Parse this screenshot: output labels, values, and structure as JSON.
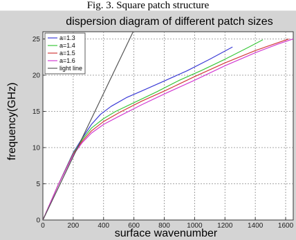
{
  "figure": {
    "caption": "Fig. 3. Square patch structure"
  },
  "chart_data": {
    "type": "line",
    "title": "dispersion diagram of different patch sizes",
    "xlabel": "surface wavenumber",
    "ylabel": "frequency(GHz)",
    "xlim": [
      0,
      1650
    ],
    "ylim": [
      0,
      26
    ],
    "xticks": [
      0,
      200,
      400,
      600,
      800,
      1000,
      1200,
      1400,
      1600
    ],
    "yticks": [
      0,
      5,
      10,
      15,
      20,
      25
    ],
    "grid": true,
    "legend_position": "top-left",
    "series": [
      {
        "name": "a=1.3",
        "color": "#3a3ad6",
        "x": [
          0,
          100,
          200,
          260,
          320,
          380,
          450,
          550,
          650,
          800,
          950,
          1100,
          1250
        ],
        "y": [
          0,
          4.8,
          9.3,
          11.3,
          13.2,
          14.6,
          15.7,
          16.9,
          17.8,
          19.2,
          20.6,
          22.2,
          23.9
        ]
      },
      {
        "name": "a=1.4",
        "color": "#3ac83a",
        "x": [
          0,
          100,
          200,
          260,
          320,
          400,
          480,
          600,
          750,
          900,
          1050,
          1200,
          1350,
          1450
        ],
        "y": [
          0,
          4.8,
          9.2,
          11.1,
          12.7,
          14.0,
          15.0,
          16.2,
          17.7,
          19.3,
          20.7,
          22.2,
          23.8,
          24.9
        ]
      },
      {
        "name": "a=1.5",
        "color": "#d23a3a",
        "x": [
          0,
          100,
          200,
          260,
          320,
          400,
          500,
          650,
          800,
          1000,
          1200,
          1400,
          1550,
          1620
        ],
        "y": [
          0,
          4.8,
          9.1,
          10.9,
          12.3,
          13.6,
          14.8,
          16.4,
          17.8,
          19.8,
          21.7,
          23.4,
          24.5,
          25.0
        ]
      },
      {
        "name": "a=1.6",
        "color": "#d23ad2",
        "x": [
          0,
          100,
          200,
          260,
          320,
          400,
          500,
          650,
          800,
          1000,
          1200,
          1400,
          1550,
          1650
        ],
        "y": [
          0,
          4.8,
          9.0,
          10.7,
          12.0,
          13.2,
          14.3,
          15.9,
          17.4,
          19.3,
          21.3,
          23.1,
          24.3,
          25.0
        ]
      },
      {
        "name": "light line",
        "color": "#555555",
        "x": [
          0,
          595
        ],
        "y": [
          0,
          26
        ]
      }
    ]
  }
}
